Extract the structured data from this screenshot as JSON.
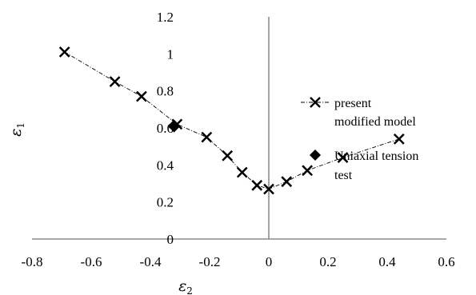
{
  "chart_data": {
    "type": "scatter",
    "title": "",
    "xlabel": "ε",
    "xlabel_sub": "2",
    "ylabel": "ε",
    "ylabel_sub": "1",
    "xlim": [
      -0.8,
      0.6
    ],
    "ylim": [
      0,
      1.2
    ],
    "xticks": [
      "-0.8",
      "-0.6",
      "-0.4",
      "-0.2",
      "0",
      "0.2",
      "0.4",
      "0.6"
    ],
    "yticks": [
      "0",
      "0.2",
      "0.4",
      "0.6",
      "0.8",
      "1",
      "1.2"
    ],
    "grid": false,
    "legend_position": "right",
    "series": [
      {
        "name": "present modified model",
        "label_lines": [
          "present",
          "modified model"
        ],
        "marker": "x",
        "line": "dash-dot",
        "color": "#000000",
        "x": [
          -0.69,
          -0.52,
          -0.43,
          -0.31,
          -0.21,
          -0.14,
          -0.09,
          -0.04,
          0.0,
          0.06,
          0.13,
          0.25,
          0.44
        ],
        "y": [
          1.01,
          0.85,
          0.77,
          0.62,
          0.55,
          0.45,
          0.36,
          0.29,
          0.27,
          0.31,
          0.37,
          0.44,
          0.54
        ]
      },
      {
        "name": "Uniaxial tension test",
        "label_lines": [
          "Uniaxial tension",
          "test"
        ],
        "marker": "diamond",
        "color": "#000000",
        "x": [
          -0.32
        ],
        "y": [
          0.61
        ]
      }
    ]
  }
}
